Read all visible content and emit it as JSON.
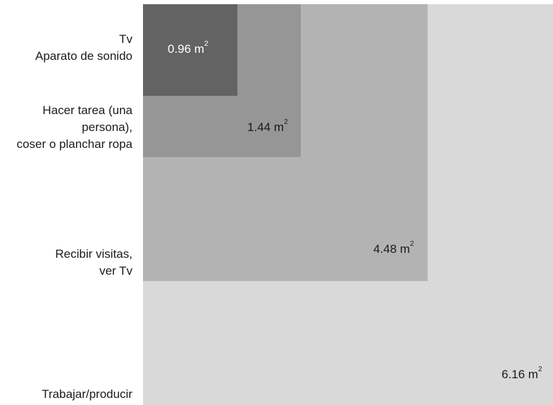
{
  "zones": [
    {
      "activity_lines": [
        "Tv",
        "Aparato de sonido"
      ],
      "area_value": "0.96 m",
      "area_exp": "2"
    },
    {
      "activity_lines": [
        "Hacer tarea (una",
        "persona),",
        "coser o planchar ropa"
      ],
      "area_value": "1.44 m",
      "area_exp": "2"
    },
    {
      "activity_lines": [
        "Recibir visitas,",
        "ver Tv"
      ],
      "area_value": "4.48 m",
      "area_exp": "2"
    },
    {
      "activity_lines": [
        "Trabajar/producir"
      ],
      "area_value": "6.16 m",
      "area_exp": "2"
    }
  ],
  "colors": {
    "zone_1": "#636363",
    "zone_2": "#969696",
    "zone_3": "#b3b3b3",
    "zone_4": "#d9d9d9"
  }
}
